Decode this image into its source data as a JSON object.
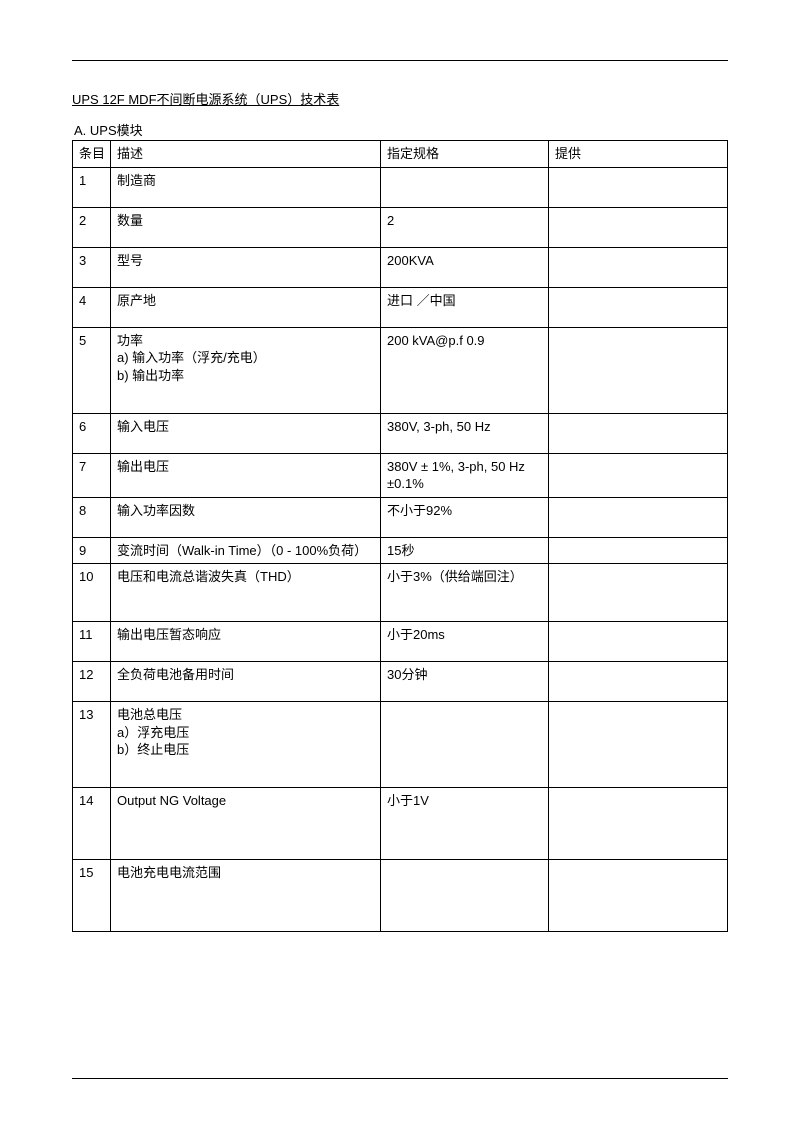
{
  "title": "UPS 12F MDF不间断电源系统（UPS）技术表",
  "section": "A. UPS模块",
  "columns": [
    "条目",
    "描述",
    "指定规格",
    "提供"
  ],
  "rows": [
    {
      "n": "1",
      "desc": "制造商",
      "spec": "",
      "prov": "",
      "cls": "short"
    },
    {
      "n": "2",
      "desc": "数量",
      "spec": "2",
      "prov": "",
      "cls": "short"
    },
    {
      "n": "3",
      "desc": "型号",
      "spec": "200KVA",
      "prov": "",
      "cls": "short"
    },
    {
      "n": "4",
      "desc": "原产地",
      "spec": "进口 ／中国",
      "prov": "",
      "cls": "short"
    },
    {
      "n": "5",
      "desc": "功率\na) 输入功率（浮充/充电）\nb) 输出功率",
      "spec": "200 kVA@p.f 0.9",
      "prov": "",
      "cls": "vtall"
    },
    {
      "n": "6",
      "desc": "输入电压",
      "spec": "380V, 3-ph, 50 Hz",
      "prov": "",
      "cls": "short"
    },
    {
      "n": "7",
      "desc": "输出电压",
      "spec": "380V ± 1%, 3-ph, 50 Hz ±0.1%",
      "prov": "",
      "cls": "short"
    },
    {
      "n": "8",
      "desc": "输入功率因数",
      "spec": "不小于92%",
      "prov": "",
      "cls": "short"
    },
    {
      "n": "9",
      "desc": "变流时间（Walk-in Time）（0 - 100%负荷）",
      "spec": "15秒",
      "prov": "",
      "cls": ""
    },
    {
      "n": "10",
      "desc": "电压和电流总谐波失真（THD）",
      "spec": "小于3%（供给端回注）",
      "prov": "",
      "cls": "tall"
    },
    {
      "n": "11",
      "desc": "输出电压暂态响应",
      "spec": "小于20ms",
      "prov": "",
      "cls": "short"
    },
    {
      "n": "12",
      "desc": "全负荷电池备用时间",
      "spec": "30分钟",
      "prov": "",
      "cls": "short"
    },
    {
      "n": "13",
      "desc": "电池总电压\na）浮充电压\nb）终止电压",
      "spec": "",
      "prov": "",
      "cls": "vtall"
    },
    {
      "n": "14",
      "desc": "Output NG Voltage",
      "spec": "小于1V",
      "prov": "",
      "cls": "xtall"
    },
    {
      "n": "15",
      "desc": "电池充电电流范围",
      "spec": "",
      "prov": "",
      "cls": "xtall"
    }
  ]
}
